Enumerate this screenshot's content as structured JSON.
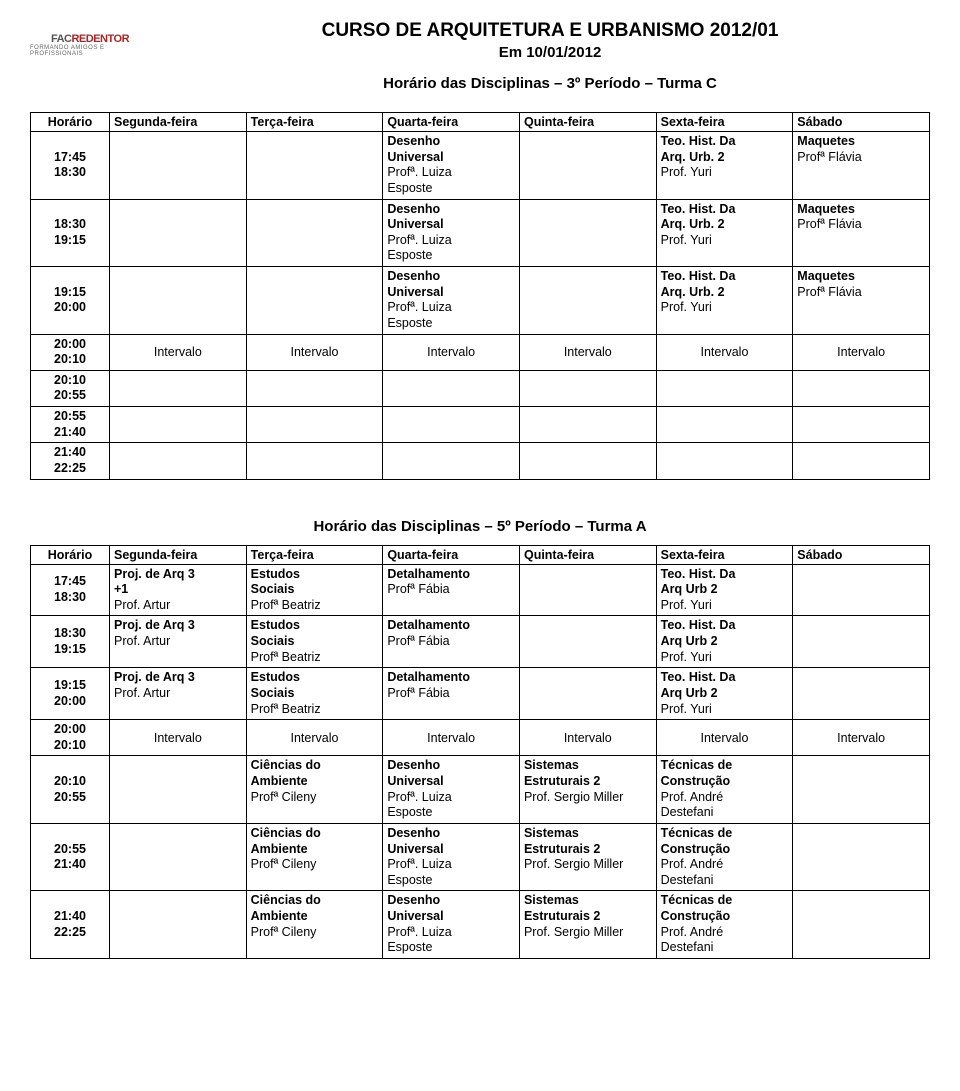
{
  "logo": {
    "prefix": "FAC",
    "main": "REDENTOR",
    "tagline": "FORMANDO AMIGOS E PROFISSIONAIS"
  },
  "header": {
    "course": "CURSO DE ARQUITETURA E URBANISMO 2012/01",
    "date": "Em 10/01/2012"
  },
  "common": {
    "interval": "Intervalo",
    "headers": [
      "Horário",
      "Segunda-feira",
      "Terça-feira",
      "Quarta-feira",
      "Quinta-feira",
      "Sexta-feira",
      "Sábado"
    ],
    "times": [
      "17:45\n18:30",
      "18:30\n19:15",
      "19:15\n20:00",
      "20:00\n20:10",
      "20:10\n20:55",
      "20:55\n21:40",
      "21:40\n22:25"
    ]
  },
  "tableC": {
    "title": "Horário das Disciplinas – 3º Período – Turma C",
    "desenho": {
      "l1": "Desenho",
      "l2": "Universal",
      "l3": "Profª. Luiza",
      "l4": "Esposte"
    },
    "teo": {
      "l1": "Teo. Hist. Da",
      "l2": "Arq. Urb. 2",
      "l3": "Prof. Yuri"
    },
    "maq": {
      "l1": "Maquetes",
      "l2": "Profª Flávia"
    }
  },
  "tableA": {
    "title": "Horário das Disciplinas – 5º Período – Turma A",
    "proj3p1": {
      "l1": "Proj. de Arq 3",
      "l2": "+1",
      "l3": "Prof. Artur"
    },
    "proj3": {
      "l1": "Proj. de Arq 3",
      "l2": "Prof. Artur"
    },
    "estudos": {
      "l1": "Estudos",
      "l2": "Sociais",
      "l3": "Profª Beatriz"
    },
    "detal": {
      "l1": "Detalhamento",
      "l2": "Profª Fábia"
    },
    "teoA": {
      "l1": "Teo. Hist. Da",
      "l2": "Arq Urb 2",
      "l3": "Prof. Yuri"
    },
    "ciencias": {
      "l1": "Ciências do",
      "l2": "Ambiente",
      "l3": "Profª Cileny"
    },
    "desenhoA": {
      "l1": "Desenho",
      "l2": "Universal",
      "l3": "Profª. Luiza",
      "l4": "Esposte"
    },
    "sistemas": {
      "l1": "Sistemas",
      "l2": "Estruturais 2",
      "l3": "Prof. Sergio Miller"
    },
    "tecnicas": {
      "l1": "Técnicas de",
      "l2": "Construção",
      "l3": "Prof. André",
      "l4": "Destefani"
    }
  }
}
